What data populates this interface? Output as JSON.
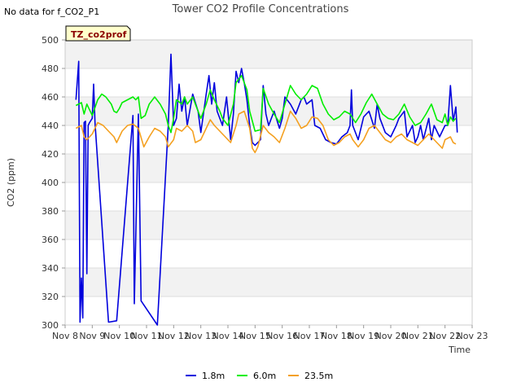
{
  "page": {
    "nodata_text": "No data for f_CO2_P1",
    "badge_text": "TZ_co2prof"
  },
  "chart_data": {
    "type": "line",
    "title": "Tower CO2 Profile Concentrations",
    "xlabel": "Time",
    "ylabel": "CO2 (ppm)",
    "ylim": [
      300,
      500
    ],
    "yticks": [
      300,
      320,
      340,
      360,
      380,
      400,
      420,
      440,
      460,
      480,
      500
    ],
    "xlim": [
      8,
      23
    ],
    "xticks": [
      {
        "x": 8,
        "label": "Nov 8"
      },
      {
        "x": 9,
        "label": "Nov 9"
      },
      {
        "x": 10,
        "label": "Nov 10"
      },
      {
        "x": 11,
        "label": "Nov 11"
      },
      {
        "x": 12,
        "label": "Nov 12"
      },
      {
        "x": 13,
        "label": "Nov 13"
      },
      {
        "x": 14,
        "label": "Nov 14"
      },
      {
        "x": 15,
        "label": "Nov 15"
      },
      {
        "x": 16,
        "label": "Nov 16"
      },
      {
        "x": 17,
        "label": "Nov 17"
      },
      {
        "x": 18,
        "label": "Nov 18"
      },
      {
        "x": 19,
        "label": "Nov 19"
      },
      {
        "x": 20,
        "label": "Nov 20"
      },
      {
        "x": 21,
        "label": "Nov 21"
      },
      {
        "x": 22,
        "label": "Nov 22"
      },
      {
        "x": 23,
        "label": "Nov 23"
      }
    ],
    "grid": true,
    "legend_position": "bottom-center",
    "series": [
      {
        "name": "1.8m",
        "color": "#0000dd",
        "points": [
          [
            8.4,
            458
          ],
          [
            8.5,
            485
          ],
          [
            8.55,
            302
          ],
          [
            8.6,
            333
          ],
          [
            8.65,
            305
          ],
          [
            8.7,
            442
          ],
          [
            8.75,
            443
          ],
          [
            8.8,
            336
          ],
          [
            8.85,
            440
          ],
          [
            8.9,
            442
          ],
          [
            9.0,
            445
          ],
          [
            9.05,
            469
          ],
          [
            9.1,
            442
          ],
          [
            9.6,
            302
          ],
          [
            9.9,
            303
          ],
          [
            10.5,
            447
          ],
          [
            10.55,
            315
          ],
          [
            10.7,
            448
          ],
          [
            10.8,
            317
          ],
          [
            11.4,
            300
          ],
          [
            11.8,
            440
          ],
          [
            11.9,
            490
          ],
          [
            12.0,
            440
          ],
          [
            12.1,
            445
          ],
          [
            12.2,
            469
          ],
          [
            12.3,
            450
          ],
          [
            12.4,
            460
          ],
          [
            12.5,
            440
          ],
          [
            12.7,
            462
          ],
          [
            12.9,
            450
          ],
          [
            13.0,
            435
          ],
          [
            13.2,
            462
          ],
          [
            13.3,
            475
          ],
          [
            13.4,
            455
          ],
          [
            13.5,
            470
          ],
          [
            13.6,
            450
          ],
          [
            13.8,
            440
          ],
          [
            13.95,
            460
          ],
          [
            14.1,
            430
          ],
          [
            14.2,
            448
          ],
          [
            14.3,
            478
          ],
          [
            14.4,
            470
          ],
          [
            14.5,
            480
          ],
          [
            14.6,
            470
          ],
          [
            14.7,
            458
          ],
          [
            14.8,
            440
          ],
          [
            14.9,
            428
          ],
          [
            15.0,
            426
          ],
          [
            15.2,
            430
          ],
          [
            15.3,
            468
          ],
          [
            15.4,
            448
          ],
          [
            15.5,
            440
          ],
          [
            15.7,
            450
          ],
          [
            15.9,
            438
          ],
          [
            16.0,
            445
          ],
          [
            16.1,
            460
          ],
          [
            16.3,
            455
          ],
          [
            16.5,
            448
          ],
          [
            16.7,
            458
          ],
          [
            16.8,
            460
          ],
          [
            16.9,
            455
          ],
          [
            17.1,
            458
          ],
          [
            17.2,
            440
          ],
          [
            17.4,
            438
          ],
          [
            17.6,
            430
          ],
          [
            17.8,
            428
          ],
          [
            18.0,
            427
          ],
          [
            18.2,
            432
          ],
          [
            18.4,
            435
          ],
          [
            18.5,
            440
          ],
          [
            18.55,
            465
          ],
          [
            18.6,
            440
          ],
          [
            18.8,
            430
          ],
          [
            19.0,
            446
          ],
          [
            19.2,
            450
          ],
          [
            19.4,
            438
          ],
          [
            19.5,
            455
          ],
          [
            19.6,
            445
          ],
          [
            19.8,
            435
          ],
          [
            20.0,
            432
          ],
          [
            20.2,
            440
          ],
          [
            20.3,
            445
          ],
          [
            20.5,
            450
          ],
          [
            20.6,
            432
          ],
          [
            20.8,
            440
          ],
          [
            20.9,
            428
          ],
          [
            21.0,
            432
          ],
          [
            21.1,
            440
          ],
          [
            21.2,
            430
          ],
          [
            21.4,
            445
          ],
          [
            21.5,
            430
          ],
          [
            21.6,
            440
          ],
          [
            21.8,
            432
          ],
          [
            22.0,
            440
          ],
          [
            22.1,
            440
          ],
          [
            22.2,
            468
          ],
          [
            22.3,
            443
          ],
          [
            22.4,
            453
          ],
          [
            22.45,
            435
          ]
        ]
      },
      {
        "name": "6.0m",
        "color": "#00ee00",
        "points": [
          [
            8.4,
            454
          ],
          [
            8.6,
            456
          ],
          [
            8.7,
            448
          ],
          [
            8.8,
            455
          ],
          [
            9.0,
            447
          ],
          [
            9.2,
            458
          ],
          [
            9.35,
            462
          ],
          [
            9.5,
            460
          ],
          [
            9.7,
            455
          ],
          [
            9.8,
            450
          ],
          [
            9.9,
            449
          ],
          [
            10.0,
            452
          ],
          [
            10.1,
            456
          ],
          [
            10.3,
            458
          ],
          [
            10.5,
            460
          ],
          [
            10.6,
            458
          ],
          [
            10.7,
            460
          ],
          [
            10.8,
            445
          ],
          [
            10.95,
            447
          ],
          [
            11.1,
            455
          ],
          [
            11.3,
            460
          ],
          [
            11.5,
            455
          ],
          [
            11.7,
            448
          ],
          [
            11.8,
            440
          ],
          [
            11.9,
            435
          ],
          [
            12.0,
            445
          ],
          [
            12.1,
            458
          ],
          [
            12.3,
            455
          ],
          [
            12.4,
            460
          ],
          [
            12.5,
            455
          ],
          [
            12.7,
            460
          ],
          [
            12.8,
            455
          ],
          [
            13.0,
            445
          ],
          [
            13.2,
            455
          ],
          [
            13.35,
            465
          ],
          [
            13.5,
            458
          ],
          [
            13.7,
            450
          ],
          [
            13.8,
            445
          ],
          [
            14.0,
            440
          ],
          [
            14.2,
            455
          ],
          [
            14.3,
            470
          ],
          [
            14.5,
            475
          ],
          [
            14.6,
            470
          ],
          [
            14.7,
            465
          ],
          [
            14.8,
            450
          ],
          [
            15.0,
            436
          ],
          [
            15.2,
            437
          ],
          [
            15.3,
            466
          ],
          [
            15.5,
            455
          ],
          [
            15.7,
            448
          ],
          [
            15.9,
            442
          ],
          [
            16.1,
            455
          ],
          [
            16.3,
            468
          ],
          [
            16.5,
            462
          ],
          [
            16.7,
            458
          ],
          [
            16.9,
            462
          ],
          [
            17.1,
            468
          ],
          [
            17.3,
            466
          ],
          [
            17.5,
            455
          ],
          [
            17.7,
            448
          ],
          [
            17.9,
            444
          ],
          [
            18.1,
            446
          ],
          [
            18.3,
            450
          ],
          [
            18.5,
            448
          ],
          [
            18.7,
            442
          ],
          [
            18.9,
            448
          ],
          [
            19.1,
            456
          ],
          [
            19.3,
            462
          ],
          [
            19.5,
            455
          ],
          [
            19.7,
            448
          ],
          [
            19.9,
            445
          ],
          [
            20.1,
            444
          ],
          [
            20.3,
            448
          ],
          [
            20.5,
            455
          ],
          [
            20.7,
            446
          ],
          [
            20.9,
            440
          ],
          [
            21.1,
            442
          ],
          [
            21.3,
            448
          ],
          [
            21.5,
            455
          ],
          [
            21.7,
            444
          ],
          [
            21.9,
            442
          ],
          [
            22.0,
            448
          ],
          [
            22.1,
            440
          ],
          [
            22.2,
            446
          ],
          [
            22.3,
            443
          ],
          [
            22.4,
            445
          ]
        ]
      },
      {
        "name": "23.5m",
        "color": "#f4a020",
        "points": [
          [
            8.4,
            438
          ],
          [
            8.6,
            440
          ],
          [
            8.7,
            432
          ],
          [
            8.8,
            430
          ],
          [
            9.0,
            434
          ],
          [
            9.2,
            442
          ],
          [
            9.4,
            440
          ],
          [
            9.6,
            436
          ],
          [
            9.8,
            432
          ],
          [
            9.9,
            428
          ],
          [
            10.1,
            436
          ],
          [
            10.3,
            440
          ],
          [
            10.5,
            441
          ],
          [
            10.7,
            438
          ],
          [
            10.9,
            425
          ],
          [
            11.1,
            432
          ],
          [
            11.3,
            438
          ],
          [
            11.5,
            436
          ],
          [
            11.7,
            432
          ],
          [
            11.8,
            425
          ],
          [
            12.0,
            430
          ],
          [
            12.1,
            438
          ],
          [
            12.3,
            436
          ],
          [
            12.5,
            440
          ],
          [
            12.7,
            436
          ],
          [
            12.8,
            428
          ],
          [
            13.0,
            430
          ],
          [
            13.2,
            438
          ],
          [
            13.35,
            444
          ],
          [
            13.5,
            440
          ],
          [
            13.7,
            436
          ],
          [
            13.9,
            432
          ],
          [
            14.1,
            428
          ],
          [
            14.3,
            440
          ],
          [
            14.4,
            448
          ],
          [
            14.6,
            450
          ],
          [
            14.8,
            438
          ],
          [
            14.9,
            424
          ],
          [
            15.0,
            421
          ],
          [
            15.1,
            425
          ],
          [
            15.3,
            440
          ],
          [
            15.5,
            435
          ],
          [
            15.7,
            432
          ],
          [
            15.9,
            428
          ],
          [
            16.1,
            438
          ],
          [
            16.3,
            450
          ],
          [
            16.5,
            445
          ],
          [
            16.7,
            438
          ],
          [
            16.9,
            440
          ],
          [
            17.1,
            446
          ],
          [
            17.3,
            445
          ],
          [
            17.5,
            440
          ],
          [
            17.7,
            430
          ],
          [
            17.9,
            426
          ],
          [
            18.1,
            428
          ],
          [
            18.3,
            432
          ],
          [
            18.5,
            434
          ],
          [
            18.6,
            430
          ],
          [
            18.8,
            425
          ],
          [
            19.0,
            430
          ],
          [
            19.2,
            438
          ],
          [
            19.4,
            440
          ],
          [
            19.6,
            435
          ],
          [
            19.8,
            430
          ],
          [
            20.0,
            428
          ],
          [
            20.2,
            432
          ],
          [
            20.4,
            434
          ],
          [
            20.6,
            430
          ],
          [
            20.8,
            428
          ],
          [
            21.0,
            426
          ],
          [
            21.2,
            430
          ],
          [
            21.4,
            434
          ],
          [
            21.6,
            430
          ],
          [
            21.8,
            426
          ],
          [
            21.9,
            424
          ],
          [
            22.0,
            430
          ],
          [
            22.2,
            432
          ],
          [
            22.3,
            428
          ],
          [
            22.4,
            427
          ]
        ]
      }
    ]
  }
}
